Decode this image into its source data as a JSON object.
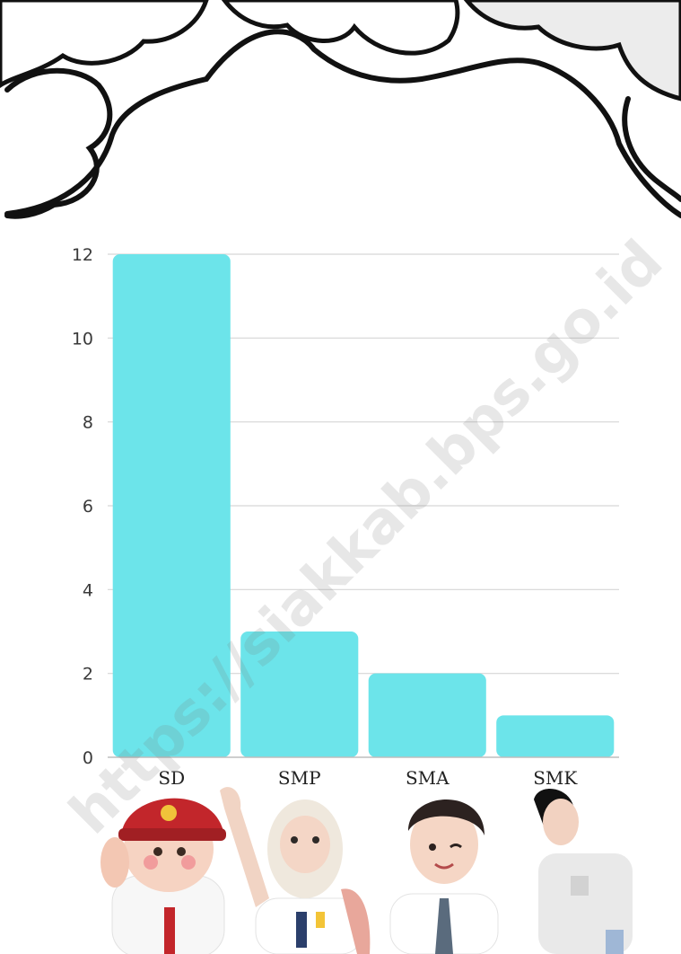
{
  "chart_data": {
    "type": "bar",
    "categories": [
      "SD",
      "SMP",
      "SMA",
      "SMK"
    ],
    "values": [
      12,
      3,
      2,
      1
    ],
    "ylim": [
      0,
      12
    ],
    "yticks": [
      0,
      2,
      4,
      6,
      8,
      10,
      12
    ],
    "grid": true,
    "bar_color": "#6ce4ea",
    "title": "",
    "xlabel": "",
    "ylabel": ""
  },
  "watermark": "https://siakkab.bps.go.id",
  "colors": {
    "cloud_fill": "#ffffff",
    "cloud_shadow": "#e9e9e9",
    "outline": "#111111",
    "grid": "#d6d6d6"
  }
}
